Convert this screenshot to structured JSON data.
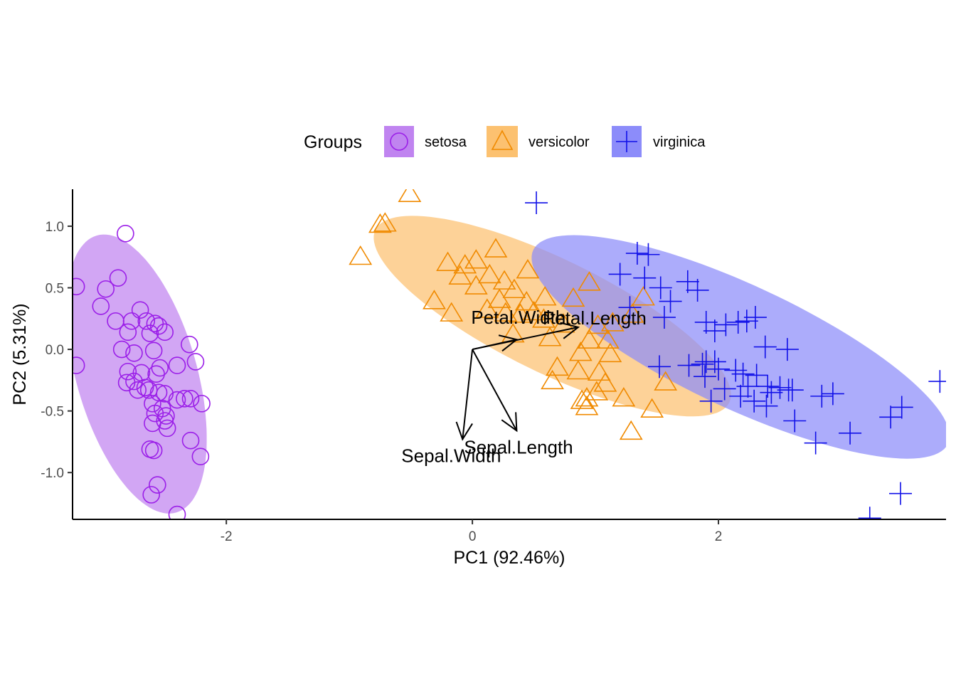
{
  "chart_data": {
    "type": "scatter",
    "subtype": "pca-biplot",
    "xlabel": "PC1 (92.46%)",
    "ylabel": "PC2 (5.31%)",
    "xlim": [
      -3.25,
      3.85
    ],
    "ylim": [
      -1.38,
      1.3
    ],
    "x_ticks": [
      -2,
      0,
      2
    ],
    "x_tick_labels": [
      "-2",
      "0",
      "2"
    ],
    "y_ticks": [
      -1.0,
      -0.5,
      0.0,
      0.5,
      1.0
    ],
    "y_tick_labels": [
      "-1.0",
      "-0.5",
      "0.0",
      "0.5",
      "1.0"
    ],
    "grid": false,
    "legend": {
      "title": "Groups",
      "position": "top",
      "entries": [
        "setosa",
        "versicolor",
        "virginica"
      ]
    },
    "series": [
      {
        "name": "setosa",
        "marker": "circle",
        "color": "#9b1fe8",
        "fill": "#c084f0",
        "ellipse": {
          "cx": -2.73,
          "cy": -0.2,
          "semi_major": 1.17,
          "semi_minor": 0.49,
          "angle_deg": -74
        },
        "points": [
          [
            -3.22,
            0.51
          ],
          [
            -3.22,
            -0.13
          ],
          [
            -2.82,
            0.94
          ],
          [
            -2.88,
            0.58
          ],
          [
            -2.98,
            0.49
          ],
          [
            -3.02,
            0.35
          ],
          [
            -2.9,
            0.23
          ],
          [
            -2.77,
            0.23
          ],
          [
            -2.8,
            0.14
          ],
          [
            -2.7,
            0.32
          ],
          [
            -2.65,
            0.23
          ],
          [
            -2.58,
            0.21
          ],
          [
            -2.62,
            0.13
          ],
          [
            -2.55,
            0.19
          ],
          [
            -2.5,
            0.14
          ],
          [
            -2.85,
            0.0
          ],
          [
            -2.75,
            -0.03
          ],
          [
            -2.59,
            -0.01
          ],
          [
            -2.4,
            -0.13
          ],
          [
            -2.25,
            -0.1
          ],
          [
            -2.3,
            0.04
          ],
          [
            -2.8,
            -0.18
          ],
          [
            -2.69,
            -0.19
          ],
          [
            -2.57,
            -0.2
          ],
          [
            -2.75,
            -0.26
          ],
          [
            -2.81,
            -0.27
          ],
          [
            -2.72,
            -0.33
          ],
          [
            -2.66,
            -0.31
          ],
          [
            -2.63,
            -0.33
          ],
          [
            -2.55,
            -0.35
          ],
          [
            -2.5,
            -0.36
          ],
          [
            -2.4,
            -0.41
          ],
          [
            -2.6,
            -0.44
          ],
          [
            -2.52,
            -0.48
          ],
          [
            -2.58,
            -0.52
          ],
          [
            -2.49,
            -0.54
          ],
          [
            -2.34,
            -0.4
          ],
          [
            -2.29,
            -0.4
          ],
          [
            -2.2,
            -0.44
          ],
          [
            -2.6,
            -0.6
          ],
          [
            -2.5,
            -0.58
          ],
          [
            -2.48,
            -0.64
          ],
          [
            -2.62,
            -0.81
          ],
          [
            -2.59,
            -0.82
          ],
          [
            -2.29,
            -0.74
          ],
          [
            -2.21,
            -0.87
          ],
          [
            -2.56,
            -1.1
          ],
          [
            -2.61,
            -1.18
          ],
          [
            -2.4,
            -1.34
          ],
          [
            -2.54,
            -0.15
          ]
        ]
      },
      {
        "name": "versicolor",
        "marker": "triangle",
        "color": "#f08a00",
        "fill": "#fcc170",
        "ellipse": {
          "cx": 0.65,
          "cy": 0.27,
          "semi_major": 1.6,
          "semi_minor": 0.46,
          "angle_deg": -26
        },
        "points": [
          [
            -0.51,
            1.27
          ],
          [
            -0.75,
            1.02
          ],
          [
            -0.71,
            1.03
          ],
          [
            -0.91,
            0.76
          ],
          [
            0.19,
            0.82
          ],
          [
            -0.2,
            0.71
          ],
          [
            -0.06,
            0.69
          ],
          [
            0.03,
            0.73
          ],
          [
            -0.1,
            0.6
          ],
          [
            0.14,
            0.61
          ],
          [
            0.26,
            0.56
          ],
          [
            0.45,
            0.65
          ],
          [
            0.34,
            0.49
          ],
          [
            0.22,
            0.41
          ],
          [
            0.44,
            0.39
          ],
          [
            0.03,
            0.52
          ],
          [
            -0.31,
            0.4
          ],
          [
            -0.17,
            0.3
          ],
          [
            0.12,
            0.33
          ],
          [
            0.27,
            0.3
          ],
          [
            0.39,
            0.29
          ],
          [
            0.59,
            0.43
          ],
          [
            0.5,
            0.31
          ],
          [
            0.82,
            0.42
          ],
          [
            0.95,
            0.55
          ],
          [
            1.39,
            0.43
          ],
          [
            0.33,
            0.13
          ],
          [
            0.58,
            0.25
          ],
          [
            0.74,
            0.21
          ],
          [
            1.02,
            0.2
          ],
          [
            1.14,
            0.22
          ],
          [
            1.3,
            0.29
          ],
          [
            0.63,
            0.1
          ],
          [
            0.95,
            0.08
          ],
          [
            1.1,
            0.08
          ],
          [
            0.88,
            -0.02
          ],
          [
            1.12,
            -0.03
          ],
          [
            0.69,
            -0.14
          ],
          [
            0.86,
            -0.17
          ],
          [
            1.03,
            -0.18
          ],
          [
            0.65,
            -0.25
          ],
          [
            1.01,
            -0.34
          ],
          [
            1.08,
            -0.27
          ],
          [
            0.89,
            -0.41
          ],
          [
            0.93,
            -0.39
          ],
          [
            1.23,
            -0.39
          ],
          [
            0.93,
            -0.46
          ],
          [
            1.46,
            -0.48
          ],
          [
            1.29,
            -0.66
          ],
          [
            1.57,
            -0.26
          ]
        ]
      },
      {
        "name": "virginica",
        "marker": "plus",
        "color": "#1010e8",
        "fill": "#8c8cfa",
        "ellipse": {
          "cx": 2.18,
          "cy": 0.02,
          "semi_major": 1.86,
          "semi_minor": 0.5,
          "angle_deg": -25
        },
        "points": [
          [
            0.52,
            1.19
          ],
          [
            1.2,
            0.61
          ],
          [
            1.34,
            0.78
          ],
          [
            1.43,
            0.77
          ],
          [
            1.4,
            0.58
          ],
          [
            1.53,
            0.5
          ],
          [
            1.75,
            0.55
          ],
          [
            1.83,
            0.48
          ],
          [
            1.61,
            0.39
          ],
          [
            1.28,
            0.34
          ],
          [
            1.56,
            0.26
          ],
          [
            1.9,
            0.22
          ],
          [
            2.06,
            0.2
          ],
          [
            2.16,
            0.22
          ],
          [
            2.23,
            0.23
          ],
          [
            2.3,
            0.26
          ],
          [
            1.97,
            0.15
          ],
          [
            2.38,
            0.02
          ],
          [
            2.56,
            0.0
          ],
          [
            1.76,
            -0.13
          ],
          [
            1.87,
            -0.12
          ],
          [
            1.9,
            -0.1
          ],
          [
            1.97,
            -0.1
          ],
          [
            2.0,
            -0.16
          ],
          [
            1.89,
            -0.22
          ],
          [
            2.14,
            -0.17
          ],
          [
            2.2,
            -0.2
          ],
          [
            2.31,
            -0.21
          ],
          [
            2.05,
            -0.32
          ],
          [
            2.24,
            -0.3
          ],
          [
            2.4,
            -0.3
          ],
          [
            2.5,
            -0.31
          ],
          [
            2.57,
            -0.33
          ],
          [
            2.29,
            -0.42
          ],
          [
            2.43,
            -0.35
          ],
          [
            2.84,
            -0.38
          ],
          [
            2.93,
            -0.36
          ],
          [
            2.39,
            -0.46
          ],
          [
            2.18,
            -0.38
          ],
          [
            2.62,
            -0.58
          ],
          [
            2.79,
            -0.76
          ],
          [
            3.07,
            -0.68
          ],
          [
            3.4,
            -0.55
          ],
          [
            3.49,
            -0.47
          ],
          [
            3.8,
            -0.26
          ],
          [
            3.48,
            -1.17
          ],
          [
            3.23,
            -1.37
          ],
          [
            1.94,
            -0.42
          ],
          [
            2.6,
            -0.33
          ],
          [
            1.52,
            -0.14
          ]
        ]
      }
    ],
    "loadings": [
      {
        "name": "Petal.Length",
        "x": 0.86,
        "y": 0.18
      },
      {
        "name": "Petal.Width",
        "x": 0.36,
        "y": 0.08
      },
      {
        "name": "Sepal.Length",
        "x": 0.36,
        "y": -0.66
      },
      {
        "name": "Sepal.Width",
        "x": -0.08,
        "y": -0.73
      }
    ]
  }
}
